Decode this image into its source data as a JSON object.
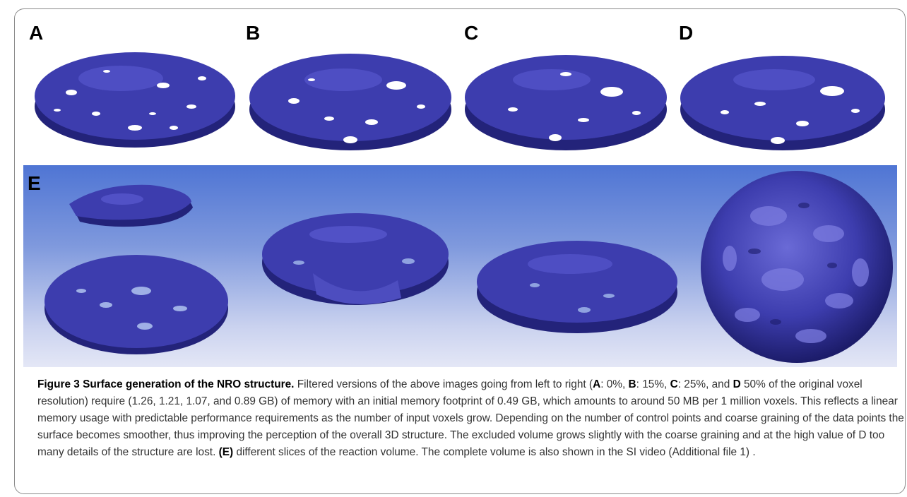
{
  "figure": {
    "panels_top": [
      {
        "label": "A"
      },
      {
        "label": "B"
      },
      {
        "label": "C"
      },
      {
        "label": "D"
      }
    ],
    "panel_e_label": "E",
    "colors": {
      "surface": "#3d3dae",
      "surface_dark": "#23237a",
      "surface_light": "#5a5ad0",
      "background_top": "#4f75d4",
      "background_bottom": "#e4e7f6"
    }
  },
  "caption": {
    "title": "Figure 3 Surface generation of the NRO structure.",
    "t1": " Filtered versions of the above images going from left to right (",
    "a_label": "A",
    "a_value": ": 0%, ",
    "b_label": "B",
    "b_value": ": 15%, ",
    "c_label": "C",
    "c_value": ": 25%, and ",
    "d_label": "D",
    "t2": " 50% of the original voxel resolution) require (1.26, 1.21, 1.07, and 0.89 GB) of memory with an initial memory footprint of 0.49 GB, which amounts to around 50 MB per 1 million voxels. This reflects a linear memory usage with predictable performance requirements as the number of input voxels grow. Depending on the number of control points and coarse graining of the data points the surface becomes smoother, thus improving the perception of the overall 3D structure. The excluded volume grows slightly with the coarse graining and at the high value of D too many details of the structure are lost. ",
    "e_label": "(E)",
    "t3": " different slices of the reaction volume. The complete volume is also shown in the SI video (Additional file 1) ."
  }
}
